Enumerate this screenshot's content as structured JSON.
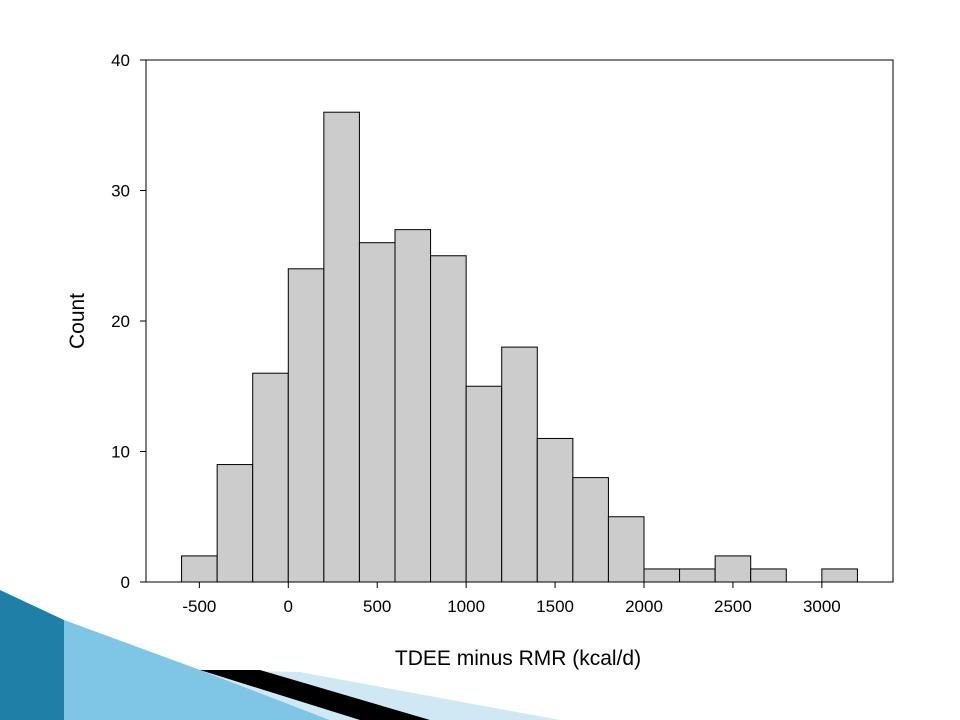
{
  "slide": {
    "colors": {
      "background": "#ffffff",
      "bar_fill": "#cccccc",
      "bar_stroke": "#000000",
      "decor_dark": "#1f7fa6",
      "decor_light": "#7fc6e6",
      "decor_pale": "#cfe8f4",
      "decor_black": "#000000"
    }
  },
  "chart_data": {
    "type": "bar",
    "title": "",
    "xlabel": "TDEE minus RMR (kcal/d)",
    "ylabel": "Count",
    "bin_width": 200,
    "bins": [
      {
        "x0": -600,
        "x1": -400,
        "count": 2
      },
      {
        "x0": -400,
        "x1": -200,
        "count": 9
      },
      {
        "x0": -200,
        "x1": 0,
        "count": 16
      },
      {
        "x0": 0,
        "x1": 200,
        "count": 24
      },
      {
        "x0": 200,
        "x1": 400,
        "count": 36
      },
      {
        "x0": 400,
        "x1": 600,
        "count": 26
      },
      {
        "x0": 600,
        "x1": 800,
        "count": 27
      },
      {
        "x0": 800,
        "x1": 1000,
        "count": 25
      },
      {
        "x0": 1000,
        "x1": 1200,
        "count": 15
      },
      {
        "x0": 1200,
        "x1": 1400,
        "count": 18
      },
      {
        "x0": 1400,
        "x1": 1600,
        "count": 11
      },
      {
        "x0": 1600,
        "x1": 1800,
        "count": 8
      },
      {
        "x0": 1800,
        "x1": 2000,
        "count": 5
      },
      {
        "x0": 2000,
        "x1": 2200,
        "count": 1
      },
      {
        "x0": 2200,
        "x1": 2400,
        "count": 1
      },
      {
        "x0": 2400,
        "x1": 2600,
        "count": 2
      },
      {
        "x0": 2600,
        "x1": 2800,
        "count": 1
      },
      {
        "x0": 2800,
        "x1": 3000,
        "count": 0
      },
      {
        "x0": 3000,
        "x1": 3200,
        "count": 1
      }
    ],
    "xlim": [
      -800,
      3400
    ],
    "ylim": [
      0,
      40
    ],
    "xticks": [
      -500,
      0,
      500,
      1000,
      1500,
      2000,
      2500,
      3000
    ],
    "xtick_labels": [
      "-500",
      "0",
      "500",
      "1000",
      "1500",
      "2000",
      "2500",
      "3000"
    ],
    "yticks": [
      0,
      10,
      20,
      30,
      40
    ],
    "ytick_labels": [
      "0",
      "10",
      "20",
      "30",
      "40"
    ],
    "grid": false,
    "legend": "none"
  }
}
